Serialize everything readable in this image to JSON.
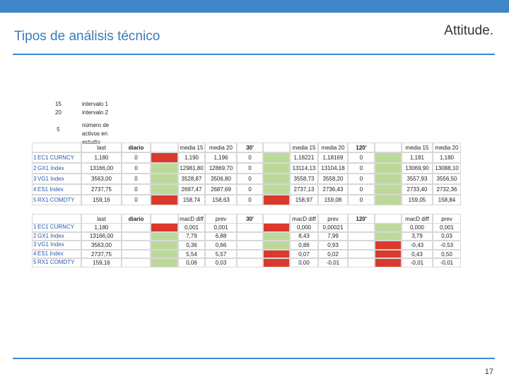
{
  "header": {
    "title": "Tipos de análisis técnico",
    "brand": "Attitude."
  },
  "parameters": [
    [
      "15",
      "intervalo 1"
    ],
    [
      "20",
      "intervalo 2"
    ],
    [
      "5",
      "número de activos en estudio"
    ]
  ],
  "signal_colors": {
    "red": "#d93a2b",
    "green": "#bcd99a"
  },
  "tables": [
    {
      "headers": [
        "last",
        "diario",
        "media 15",
        "media 20",
        "30'",
        "media 15",
        "media 20",
        "120'",
        "media 15",
        "media 20"
      ],
      "rows": [
        {
          "index": "1",
          "ticker": "EC1 CURNCY",
          "cells": [
            "1,180",
            "0",
            "1,190",
            "1,196",
            "0",
            "1,18221",
            "1,18169",
            "0",
            "1,181",
            "1,180"
          ],
          "signals": [
            "red",
            "green",
            "green"
          ]
        },
        {
          "index": "2",
          "ticker": "GX1 Index",
          "cells": [
            "13166,00",
            "0",
            "12981,80",
            "12869,70",
            "0",
            "13114,13",
            "13104,18",
            "0",
            "13069,90",
            "13088,10"
          ],
          "signals": [
            "green",
            "green",
            "green"
          ]
        },
        {
          "index": "3",
          "ticker": "VG1 Index",
          "cells": [
            "3563,00",
            "0",
            "3528,87",
            "3506,80",
            "0",
            "3558,73",
            "3558,20",
            "0",
            "3557,93",
            "3556,50"
          ],
          "signals": [
            "green",
            "green",
            "green"
          ]
        },
        {
          "index": "4",
          "ticker": "ES1 Index",
          "cells": [
            "2737,75",
            "0",
            "2697,47",
            "2687,69",
            "0",
            "2737,13",
            "2736,43",
            "0",
            "2733,40",
            "2732,36"
          ],
          "signals": [
            "green",
            "green",
            "green"
          ]
        },
        {
          "index": "5",
          "ticker": "RX1 COMDTY",
          "cells": [
            "159,16",
            "0",
            "158,74",
            "158,63",
            "0",
            "158,97",
            "159,08",
            "0",
            "159,05",
            "158,84"
          ],
          "signals": [
            "red",
            "red",
            "green"
          ]
        }
      ]
    },
    {
      "headers": [
        "last",
        "diario",
        "macD diff",
        "prev",
        "30'",
        "macD diff",
        "prev",
        "120'",
        "macD diff",
        "prev"
      ],
      "rows": [
        {
          "index": "1",
          "ticker": "EC1 CURNCY",
          "cells": [
            "1,180",
            "0,001",
            "0,001",
            "0,000",
            "0,00021",
            "0,000",
            "0,001"
          ],
          "signals": [
            "red",
            "red",
            "green"
          ]
        },
        {
          "index": "2",
          "ticker": "GX1 Index",
          "cells": [
            "13166,00",
            "7,79",
            "6,88",
            "8,43",
            "7,99",
            "3,79",
            "0,03"
          ],
          "signals": [
            "green",
            "green",
            "green"
          ]
        },
        {
          "index": "3",
          "ticker": "VG1 Index",
          "cells": [
            "3563,00",
            "0,36",
            "0,66",
            "0,86",
            "0,93",
            "-0,43",
            "-0,53"
          ],
          "signals": [
            "green",
            "green",
            "red"
          ]
        },
        {
          "index": "4",
          "ticker": "ES1 Index",
          "cells": [
            "2737,75",
            "5,54",
            "5,57",
            "0,07",
            "0,02",
            "0,43",
            "0,50"
          ],
          "signals": [
            "green",
            "red",
            "red"
          ]
        },
        {
          "index": "5",
          "ticker": "RX1 COMDTY",
          "cells": [
            "159,16",
            "0,06",
            "0,03",
            "0,00",
            "-0,01",
            "-0,01",
            "-0,01"
          ],
          "signals": [
            "green",
            "red",
            "red"
          ]
        }
      ]
    }
  ],
  "page_number": "17"
}
